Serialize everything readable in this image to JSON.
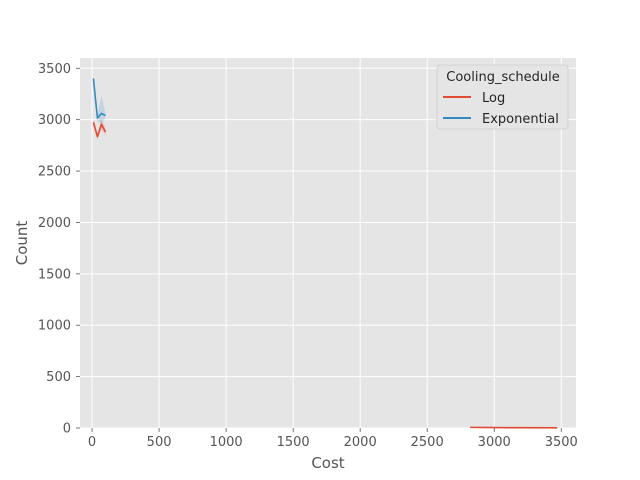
{
  "chart_data": {
    "type": "line",
    "xlabel": "Cost",
    "ylabel": "Count",
    "xlim": [
      -90,
      3610
    ],
    "ylim": [
      0,
      3600
    ],
    "xticks": [
      0,
      500,
      1000,
      1500,
      2000,
      2500,
      3000,
      3500
    ],
    "yticks": [
      0,
      500,
      1000,
      1500,
      2000,
      2500,
      3000,
      3500
    ],
    "grid": true,
    "legend": {
      "title": "Cooling_schedule",
      "placement": "top-right"
    },
    "series": [
      {
        "name": "Log",
        "color": "#E24A33",
        "x": [
          10,
          40,
          70,
          100
        ],
        "y": [
          2975,
          2835,
          2955,
          2880
        ],
        "ci_low": [
          2940,
          2805,
          2905,
          2840
        ],
        "ci_high": [
          3010,
          2865,
          3010,
          2920
        ]
      },
      {
        "name": "Exponential",
        "color": "#348ABD",
        "x": [
          10,
          40,
          70,
          100
        ],
        "y": [
          3400,
          3015,
          3060,
          3040
        ],
        "ci_low": [
          3380,
          2990,
          2960,
          3020
        ],
        "ci_high": [
          3420,
          3040,
          3230,
          3060
        ]
      },
      {
        "name": "",
        "color": "#E24A33",
        "x": [
          2820,
          3000,
          3200,
          3470
        ],
        "y": [
          6,
          4,
          3,
          2
        ]
      }
    ]
  },
  "colors": {
    "plot_background": "#E5E5E5",
    "grid": "#FFFFFF",
    "text": "#555555"
  }
}
